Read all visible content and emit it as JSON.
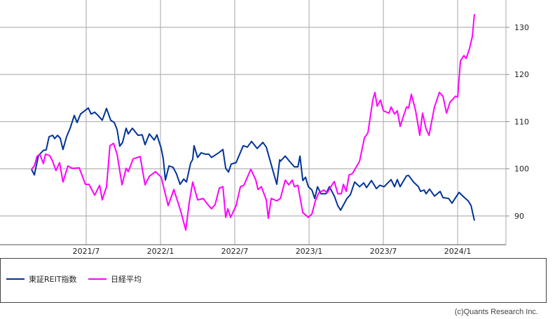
{
  "chart_data": {
    "type": "line",
    "title": "",
    "xlabel": "",
    "ylabel": "",
    "x_ticks": [
      {
        "label": "2021/7",
        "x": 2021.5
      },
      {
        "label": "2022/1",
        "x": 2022.0
      },
      {
        "label": "2022/7",
        "x": 2022.5
      },
      {
        "label": "2023/1",
        "x": 2023.0
      },
      {
        "label": "2023/7",
        "x": 2023.5
      },
      {
        "label": "2024/1",
        "x": 2024.0
      }
    ],
    "y_ticks": [
      90,
      100,
      110,
      120,
      130
    ],
    "xlim": [
      2020.92,
      2024.325
    ],
    "ylim": [
      83.9,
      135.8
    ],
    "grid": true,
    "y_axis_side": "right",
    "legend_position": "bottom",
    "series": [
      {
        "name": "東証REIT指数",
        "color": "#003399",
        "points": [
          [
            2021.132,
            99.9
          ],
          [
            2021.151,
            98.7
          ],
          [
            2021.179,
            102.8
          ],
          [
            2021.212,
            103.9
          ],
          [
            2021.231,
            104.0
          ],
          [
            2021.25,
            106.8
          ],
          [
            2021.274,
            107.1
          ],
          [
            2021.288,
            106.4
          ],
          [
            2021.307,
            107.1
          ],
          [
            2021.325,
            106.5
          ],
          [
            2021.344,
            104.1
          ],
          [
            2021.368,
            106.8
          ],
          [
            2021.392,
            108.6
          ],
          [
            2021.42,
            111.3
          ],
          [
            2021.439,
            109.8
          ],
          [
            2021.462,
            111.6
          ],
          [
            2021.514,
            112.9
          ],
          [
            2021.533,
            111.6
          ],
          [
            2021.557,
            112.0
          ],
          [
            2021.58,
            111.3
          ],
          [
            2021.608,
            110.3
          ],
          [
            2021.637,
            112.8
          ],
          [
            2021.665,
            110.3
          ],
          [
            2021.689,
            109.8
          ],
          [
            2021.708,
            108.3
          ],
          [
            2021.726,
            104.8
          ],
          [
            2021.745,
            105.6
          ],
          [
            2021.769,
            108.6
          ],
          [
            2021.783,
            107.4
          ],
          [
            2021.811,
            108.6
          ],
          [
            2021.849,
            107.1
          ],
          [
            2021.877,
            107.2
          ],
          [
            2021.896,
            105.1
          ],
          [
            2021.925,
            107.4
          ],
          [
            2021.958,
            106.1
          ],
          [
            2021.976,
            107.2
          ],
          [
            2022.005,
            104.3
          ],
          [
            2022.019,
            102.1
          ],
          [
            2022.033,
            97.6
          ],
          [
            2022.057,
            100.6
          ],
          [
            2022.085,
            100.3
          ],
          [
            2022.108,
            98.9
          ],
          [
            2022.132,
            96.7
          ],
          [
            2022.156,
            97.8
          ],
          [
            2022.175,
            97.2
          ],
          [
            2022.203,
            101.2
          ],
          [
            2022.217,
            102.0
          ],
          [
            2022.226,
            104.9
          ],
          [
            2022.25,
            102.4
          ],
          [
            2022.274,
            103.4
          ],
          [
            2022.302,
            103.1
          ],
          [
            2022.325,
            103.1
          ],
          [
            2022.344,
            102.4
          ],
          [
            2022.392,
            103.4
          ],
          [
            2022.42,
            104.1
          ],
          [
            2022.439,
            100.1
          ],
          [
            2022.458,
            99.3
          ],
          [
            2022.476,
            101.0
          ],
          [
            2022.509,
            101.3
          ],
          [
            2022.557,
            104.9
          ],
          [
            2022.585,
            104.6
          ],
          [
            2022.613,
            105.8
          ],
          [
            2022.651,
            104.3
          ],
          [
            2022.689,
            105.6
          ],
          [
            2022.712,
            104.6
          ],
          [
            2022.745,
            100.9
          ],
          [
            2022.783,
            96.7
          ],
          [
            2022.802,
            101.9
          ],
          [
            2022.807,
            101.6
          ],
          [
            2022.84,
            102.7
          ],
          [
            2022.868,
            101.6
          ],
          [
            2022.901,
            100.4
          ],
          [
            2022.925,
            100.4
          ],
          [
            2022.939,
            102.7
          ],
          [
            2022.958,
            97.5
          ],
          [
            2022.976,
            98.2
          ],
          [
            2022.995,
            96.2
          ],
          [
            2023.019,
            95.5
          ],
          [
            2023.038,
            93.7
          ],
          [
            2023.057,
            96.2
          ],
          [
            2023.08,
            94.7
          ],
          [
            2023.113,
            94.7
          ],
          [
            2023.137,
            96.2
          ],
          [
            2023.17,
            94.2
          ],
          [
            2023.193,
            92.2
          ],
          [
            2023.212,
            91.2
          ],
          [
            2023.255,
            93.7
          ],
          [
            2023.278,
            94.5
          ],
          [
            2023.307,
            97.2
          ],
          [
            2023.34,
            96.2
          ],
          [
            2023.368,
            97.0
          ],
          [
            2023.387,
            96.0
          ],
          [
            2023.42,
            97.5
          ],
          [
            2023.453,
            95.8
          ],
          [
            2023.476,
            96.5
          ],
          [
            2023.505,
            96.2
          ],
          [
            2023.552,
            97.7
          ],
          [
            2023.575,
            96.2
          ],
          [
            2023.594,
            97.7
          ],
          [
            2023.613,
            96.2
          ],
          [
            2023.656,
            98.5
          ],
          [
            2023.67,
            98.6
          ],
          [
            2023.703,
            97.2
          ],
          [
            2023.736,
            96.2
          ],
          [
            2023.75,
            95.2
          ],
          [
            2023.774,
            95.5
          ],
          [
            2023.788,
            94.7
          ],
          [
            2023.811,
            95.7
          ],
          [
            2023.844,
            94.2
          ],
          [
            2023.882,
            95.2
          ],
          [
            2023.901,
            93.9
          ],
          [
            2023.939,
            93.7
          ],
          [
            2023.962,
            92.7
          ],
          [
            2024.009,
            95.0
          ],
          [
            2024.042,
            94.0
          ],
          [
            2024.071,
            93.2
          ],
          [
            2024.09,
            92.2
          ],
          [
            2024.113,
            89.0
          ]
        ]
      },
      {
        "name": "日経平均",
        "color": "#ff00ff",
        "points": [
          [
            2021.132,
            99.9
          ],
          [
            2021.151,
            100.6
          ],
          [
            2021.17,
            102.7
          ],
          [
            2021.189,
            103.0
          ],
          [
            2021.212,
            101.1
          ],
          [
            2021.226,
            103.1
          ],
          [
            2021.255,
            102.8
          ],
          [
            2021.274,
            101.6
          ],
          [
            2021.297,
            99.6
          ],
          [
            2021.321,
            101.3
          ],
          [
            2021.344,
            97.2
          ],
          [
            2021.377,
            100.6
          ],
          [
            2021.406,
            100.1
          ],
          [
            2021.453,
            100.2
          ],
          [
            2021.495,
            96.7
          ],
          [
            2021.519,
            96.7
          ],
          [
            2021.557,
            94.4
          ],
          [
            2021.59,
            96.5
          ],
          [
            2021.608,
            93.4
          ],
          [
            2021.637,
            96.2
          ],
          [
            2021.66,
            104.9
          ],
          [
            2021.684,
            105.4
          ],
          [
            2021.708,
            103.1
          ],
          [
            2021.741,
            96.6
          ],
          [
            2021.769,
            100.1
          ],
          [
            2021.783,
            99.4
          ],
          [
            2021.816,
            102.1
          ],
          [
            2021.863,
            102.6
          ],
          [
            2021.896,
            96.6
          ],
          [
            2021.925,
            98.4
          ],
          [
            2021.967,
            99.4
          ],
          [
            2022.005,
            98.2
          ],
          [
            2022.052,
            92.2
          ],
          [
            2022.09,
            95.6
          ],
          [
            2022.137,
            90.9
          ],
          [
            2022.17,
            87.0
          ],
          [
            2022.193,
            92.7
          ],
          [
            2022.217,
            97.2
          ],
          [
            2022.25,
            93.4
          ],
          [
            2022.288,
            93.7
          ],
          [
            2022.311,
            92.7
          ],
          [
            2022.344,
            91.5
          ],
          [
            2022.368,
            92.4
          ],
          [
            2022.396,
            95.9
          ],
          [
            2022.42,
            96.2
          ],
          [
            2022.439,
            89.7
          ],
          [
            2022.453,
            91.5
          ],
          [
            2022.472,
            89.7
          ],
          [
            2022.509,
            92.2
          ],
          [
            2022.538,
            96.2
          ],
          [
            2022.561,
            96.5
          ],
          [
            2022.608,
            99.9
          ],
          [
            2022.642,
            97.6
          ],
          [
            2022.656,
            95.6
          ],
          [
            2022.679,
            96.2
          ],
          [
            2022.712,
            93.4
          ],
          [
            2022.726,
            89.5
          ],
          [
            2022.745,
            93.7
          ],
          [
            2022.783,
            93.2
          ],
          [
            2022.807,
            93.7
          ],
          [
            2022.84,
            97.6
          ],
          [
            2022.863,
            96.6
          ],
          [
            2022.887,
            97.6
          ],
          [
            2022.901,
            96.2
          ],
          [
            2022.925,
            96.5
          ],
          [
            2022.958,
            90.7
          ],
          [
            2022.995,
            89.7
          ],
          [
            2023.019,
            90.4
          ],
          [
            2023.042,
            93.2
          ],
          [
            2023.066,
            94.9
          ],
          [
            2023.099,
            95.5
          ],
          [
            2023.123,
            94.9
          ],
          [
            2023.146,
            96.2
          ],
          [
            2023.17,
            97.3
          ],
          [
            2023.193,
            94.7
          ],
          [
            2023.217,
            94.7
          ],
          [
            2023.231,
            96.7
          ],
          [
            2023.25,
            95.2
          ],
          [
            2023.269,
            98.7
          ],
          [
            2023.292,
            99.0
          ],
          [
            2023.34,
            101.6
          ],
          [
            2023.373,
            106.6
          ],
          [
            2023.396,
            107.6
          ],
          [
            2023.429,
            114.6
          ],
          [
            2023.443,
            116.2
          ],
          [
            2023.458,
            113.3
          ],
          [
            2023.481,
            114.6
          ],
          [
            2023.5,
            112.3
          ],
          [
            2023.538,
            111.8
          ],
          [
            2023.552,
            113.1
          ],
          [
            2023.575,
            111.6
          ],
          [
            2023.594,
            112.3
          ],
          [
            2023.613,
            109.0
          ],
          [
            2023.656,
            113.1
          ],
          [
            2023.67,
            112.9
          ],
          [
            2023.689,
            115.8
          ],
          [
            2023.717,
            112.3
          ],
          [
            2023.745,
            107.1
          ],
          [
            2023.764,
            111.8
          ],
          [
            2023.788,
            108.4
          ],
          [
            2023.807,
            107.1
          ],
          [
            2023.844,
            113.1
          ],
          [
            2023.877,
            116.2
          ],
          [
            2023.901,
            115.4
          ],
          [
            2023.925,
            111.8
          ],
          [
            2023.948,
            114.1
          ],
          [
            2023.986,
            115.4
          ],
          [
            2024.0,
            115.2
          ],
          [
            2024.019,
            122.9
          ],
          [
            2024.042,
            124.0
          ],
          [
            2024.057,
            123.4
          ],
          [
            2024.08,
            125.5
          ],
          [
            2024.099,
            128.1
          ],
          [
            2024.113,
            132.8
          ]
        ]
      }
    ]
  },
  "legend": {
    "items": [
      {
        "label": "東証REIT指数",
        "color": "#003399"
      },
      {
        "label": "日経平均",
        "color": "#ff00ff"
      }
    ]
  },
  "footer": {
    "copyright": "(c)Quants Research Inc."
  }
}
